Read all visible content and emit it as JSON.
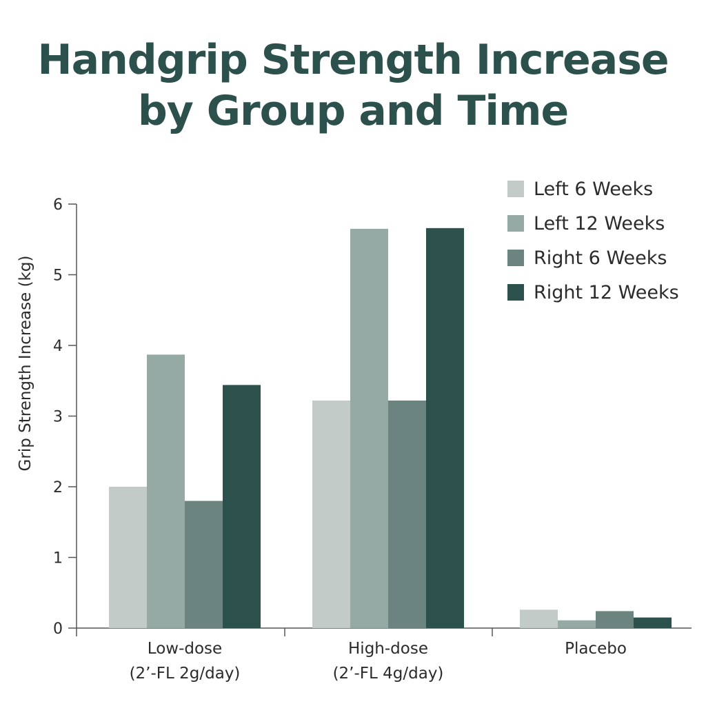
{
  "chart_data": {
    "type": "bar",
    "title_lines": [
      "Handgrip Strength Increase",
      "by Group and Time"
    ],
    "ylabel": "Grip Strength Increase (kg)",
    "xlabel": "",
    "ylim": [
      0,
      6
    ],
    "yticks": [
      0,
      1,
      2,
      3,
      4,
      5,
      6
    ],
    "categories": [
      [
        "Low-dose",
        "(2’-FL 2g/day)"
      ],
      [
        "High-dose",
        "(2’-FL 4g/day)"
      ],
      [
        "Placebo"
      ]
    ],
    "series": [
      {
        "name": "Left 6 Weeks",
        "color": "#c2cbc8",
        "values": [
          2.0,
          3.22,
          0.26
        ]
      },
      {
        "name": "Left 12 Weeks",
        "color": "#95a9a5",
        "values": [
          3.87,
          5.65,
          0.11
        ]
      },
      {
        "name": "Right 6 Weeks",
        "color": "#6b847f",
        "values": [
          1.8,
          3.22,
          0.24
        ]
      },
      {
        "name": "Right 12 Weeks",
        "color": "#2c504c",
        "values": [
          3.44,
          5.66,
          0.15
        ]
      }
    ],
    "legend_position": "top-right",
    "grid": false
  }
}
